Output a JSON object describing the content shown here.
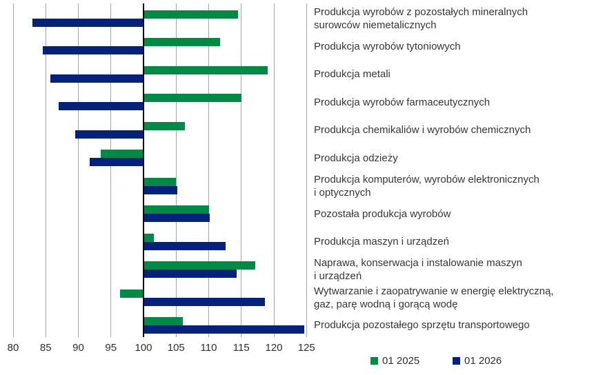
{
  "chart_data": {
    "type": "bar",
    "orientation": "horizontal",
    "title": "",
    "xlabel": "",
    "ylabel": "",
    "baseline": 100,
    "xlim": [
      80,
      125
    ],
    "xticks": [
      80,
      85,
      90,
      95,
      100,
      105,
      110,
      115,
      120,
      125
    ],
    "grid": "vertical",
    "legend_position": "bottom",
    "gridline_color": "#a6a6a6",
    "axis_color": "#000000",
    "categories": [
      "Produkcja wyrobów z pozostałych mineralnych\nsurowców niemetalicznych",
      "Produkcja wyrobów tytoniowych",
      "Produkcja metali",
      "Produkcja wyrobów farmaceutycznych",
      "Produkcja chemikaliów i wyrobów chemicznych",
      "Produkcja odzieży",
      "Produkcja komputerów, wyrobów elektronicznych\ni optycznych",
      "Pozostała produkcja wyrobów",
      "Produkcja maszyn i urządzeń",
      "Naprawa, konserwacja i instalowanie maszyn\ni urządzeń",
      "Wytwarzanie i zaopatrywanie w energię elektryczną,\ngaz, parę wodną i gorącą wodę",
      "Produkcja pozostałego sprzętu transportowego"
    ],
    "series": [
      {
        "name": "01 2025",
        "color": "#008a44",
        "values": [
          114.5,
          111.7,
          119.0,
          115.0,
          106.3,
          93.4,
          105.0,
          110.0,
          101.6,
          117.1,
          96.4,
          106.0
        ]
      },
      {
        "name": "01 2026",
        "color": "#04217c",
        "values": [
          83.0,
          84.6,
          85.7,
          87.0,
          89.5,
          91.7,
          105.2,
          110.2,
          112.6,
          114.3,
          118.6,
          124.7
        ]
      }
    ]
  }
}
